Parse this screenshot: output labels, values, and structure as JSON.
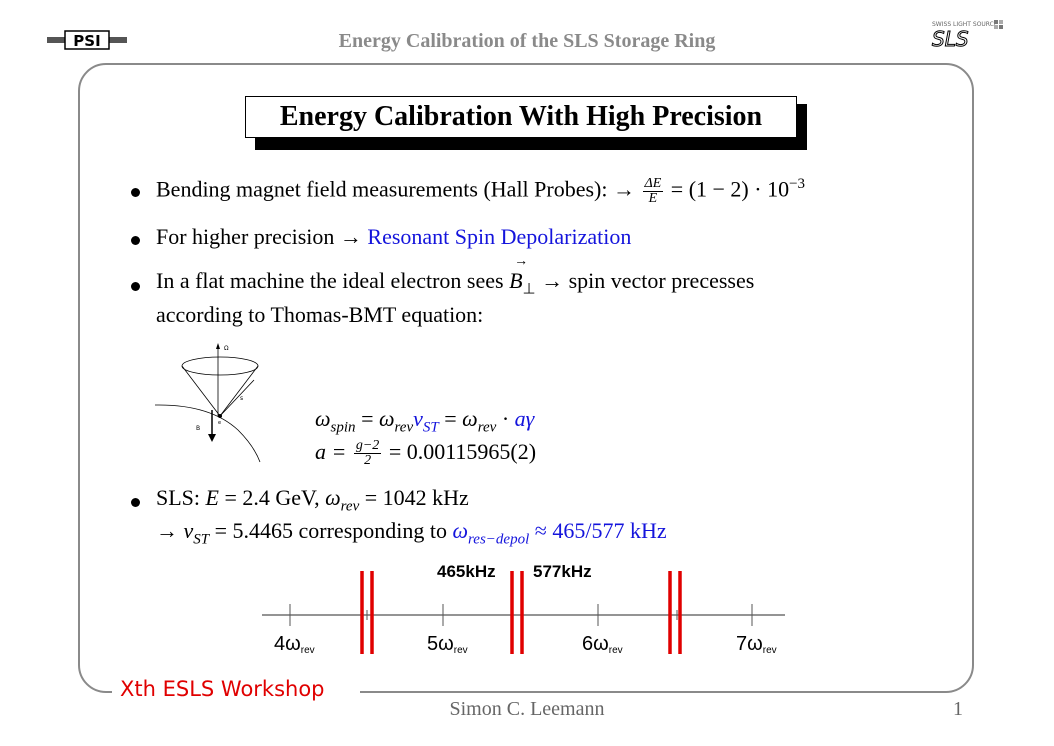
{
  "header": {
    "title": "Energy Calibration of the SLS Storage Ring",
    "psi_logo_text": "PSI",
    "sls_logo_caption": "SWISS LIGHT SOURCE",
    "sls_logo_text": "SLS"
  },
  "slide": {
    "title": "Energy Calibration With High Precision",
    "bullet1": {
      "text": "Bending magnet field measurements (Hall Probes):",
      "arrow": "→",
      "frac_num": "ΔE",
      "frac_den": "E",
      "rhs": "= (1 − 2) · 10",
      "exp": "−3"
    },
    "bullet2": {
      "text": "For higher precision",
      "arrow": "→",
      "link": "Resonant Spin Depolarization"
    },
    "bullet3": {
      "line1_a": "In a flat machine the ideal electron sees",
      "b_symbol": "B",
      "perp": "⊥",
      "line1_b": "→ spin vector precesses",
      "line2": "according to Thomas-BMT equation:"
    },
    "diagram_labels": {
      "omega": "Ω",
      "s": "s",
      "b": "B",
      "dot": "e"
    },
    "eq1": {
      "omega": "ω",
      "spin": "spin",
      "eq": "=",
      "rev": "rev",
      "nu": "ν",
      "st": "ST",
      "agamma": "aγ"
    },
    "eq2": {
      "a": "a =",
      "frac_num": "g−2",
      "frac_den": "2",
      "rhs": "= 0.00115965(2)"
    },
    "bullet4": {
      "line1_a": "SLS:",
      "E": "E",
      "line1_b": "= 2.4 GeV,",
      "line1_c": "= 1042 kHz",
      "line2_b": "= 5.4465 corresponding to",
      "res": "res−depol",
      "line2_c": "≈ 465/577 kHz"
    }
  },
  "spectrum": {
    "label_465": "465kHz",
    "label_577": "577kHz",
    "ticks": [
      {
        "label": "4ω",
        "sub": "rev"
      },
      {
        "label": "5ω",
        "sub": "rev"
      },
      {
        "label": "6ω",
        "sub": "rev"
      },
      {
        "label": "7ω",
        "sub": "rev"
      }
    ],
    "line_color": "#e00000"
  },
  "footer": {
    "workshop": "Xth ESLS Workshop",
    "presenter": "Simon C. Leemann",
    "page": "1"
  }
}
